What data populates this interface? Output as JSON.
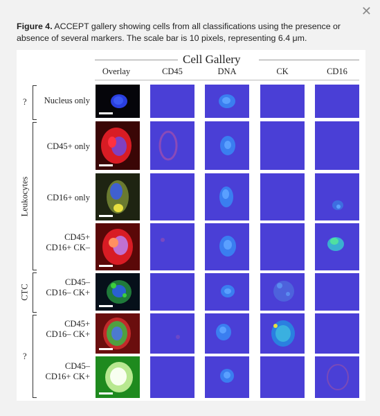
{
  "caption": {
    "label": "Figure 4.",
    "text": " ACCEPT gallery showing cells from all classifications using the presence or absence of several markers. The scale bar is 10 pixels, representing 6.4 μm."
  },
  "gallery": {
    "title": "Cell Gallery",
    "columns": [
      "Overlay",
      "CD45",
      "DNA",
      "CK",
      "CD16"
    ],
    "rows": [
      {
        "label": "Nucleus only"
      },
      {
        "label": "CD45+ only"
      },
      {
        "label": "CD16+ only"
      },
      {
        "label": "CD45+ CD16+ CK–"
      },
      {
        "label": "CD45– CD16– CK+"
      },
      {
        "label": "CD45+ CD16– CK+"
      },
      {
        "label": "CD45– CD16+ CK+"
      }
    ],
    "groups": [
      {
        "label": "?"
      },
      {
        "label": "Leukocytes"
      },
      {
        "label": "CTC"
      },
      {
        "label": "?"
      }
    ]
  },
  "colors": {
    "channel_bg": "#4a3fd6",
    "overlay_dark": "#0a0a10",
    "cd45_red": "#e0202a",
    "dna_blue": "#2f7be8",
    "ck_green": "#3ccf3c",
    "cd16_yellow": "#e8e040"
  }
}
